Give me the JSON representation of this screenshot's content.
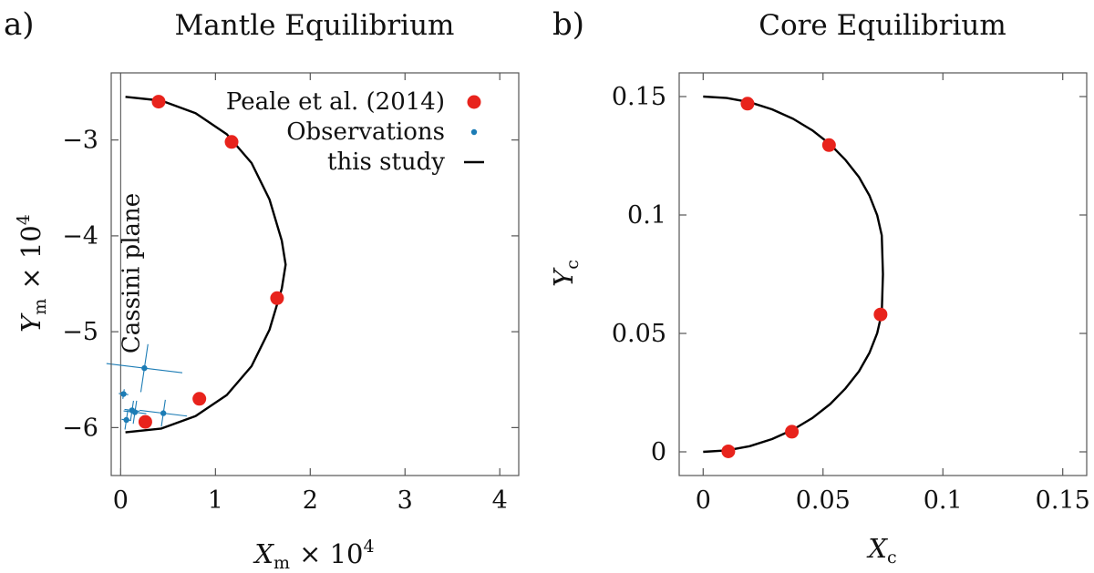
{
  "chart_data": [
    {
      "panel_label": "a)",
      "type": "scatter",
      "title": "Mantle Equilibrium",
      "xlabel": {
        "var": "X",
        "sub": "m",
        "factor": "× 10",
        "exp": "4"
      },
      "ylabel": {
        "var": "Y",
        "sub": "m",
        "factor": "× 10",
        "exp": "4"
      },
      "xlim": [
        -0.1,
        4.2
      ],
      "ylim": [
        -6.5,
        -2.3
      ],
      "xticks": [
        0,
        1,
        2,
        3,
        4
      ],
      "xtick_labels": [
        "0",
        "1",
        "2",
        "3",
        "4"
      ],
      "yticks": [
        -3,
        -4,
        -5,
        -6
      ],
      "ytick_labels": [
        "−3",
        "−4",
        "−5",
        "−6"
      ],
      "vertical_line": {
        "x": 0,
        "label": "Cassini plane"
      },
      "legend_position": "top-right",
      "legend": [
        {
          "label": "Peale et al. (2014)",
          "kind": "marker-large",
          "color": "#e8231c"
        },
        {
          "label": "Observations",
          "kind": "marker-small",
          "color": "#1c7cb5"
        },
        {
          "label": "this study",
          "kind": "line",
          "color": "#000000"
        }
      ],
      "series": [
        {
          "name": "this study",
          "type": "line",
          "color": "#000000",
          "x": [
            0.05,
            0.43,
            0.79,
            1.12,
            1.38,
            1.57,
            1.7,
            1.74,
            1.7,
            1.57,
            1.38,
            1.12,
            0.79,
            0.43,
            0.05
          ],
          "y": [
            -2.55,
            -2.59,
            -2.72,
            -2.94,
            -3.24,
            -3.62,
            -4.05,
            -4.3,
            -4.55,
            -4.98,
            -5.36,
            -5.66,
            -5.88,
            -6.01,
            -6.05
          ]
        },
        {
          "name": "Peale et al. (2014)",
          "type": "scatter",
          "color": "#e8231c",
          "x": [
            0.4,
            1.17,
            1.65,
            0.83,
            0.26
          ],
          "y": [
            -2.6,
            -3.02,
            -4.65,
            -5.7,
            -5.94
          ]
        },
        {
          "name": "Observations",
          "type": "scatter",
          "color": "#1c7cb5",
          "x": [
            0.25,
            0.03,
            0.15,
            0.45,
            0.12,
            0.06
          ],
          "y": [
            -5.38,
            -5.65,
            -5.84,
            -5.85,
            -5.82,
            -5.92
          ],
          "xerr": [
            0.4,
            0.05,
            0.12,
            0.25,
            0.08,
            0.05
          ],
          "yerr": [
            0.25,
            0.05,
            0.12,
            0.14,
            0.1,
            0.1
          ]
        }
      ]
    },
    {
      "panel_label": "b)",
      "type": "scatter",
      "title": "Core Equilibrium",
      "xlabel": {
        "var": "X",
        "sub": "c"
      },
      "ylabel": {
        "var": "Y",
        "sub": "c"
      },
      "xlim": [
        -0.01,
        0.16
      ],
      "ylim": [
        -0.01,
        0.16
      ],
      "xticks": [
        0,
        0.05,
        0.1,
        0.15
      ],
      "xtick_labels": [
        "0",
        "0.05",
        "0.1",
        "0.15"
      ],
      "yticks": [
        0,
        0.05,
        0.1,
        0.15
      ],
      "ytick_labels": [
        "0",
        "0.05",
        "0.1",
        "0.15"
      ],
      "series": [
        {
          "name": "this study",
          "type": "line",
          "color": "#000000",
          "x": [
            0.0,
            0.0098,
            0.0194,
            0.0287,
            0.0375,
            0.0456,
            0.053,
            0.0594,
            0.065,
            0.0694,
            0.0726,
            0.0745,
            0.075,
            0.0745,
            0.0726,
            0.0694,
            0.065,
            0.0594,
            0.053,
            0.0456,
            0.0375,
            0.0287,
            0.0194,
            0.0098,
            0.0
          ],
          "y": [
            0.15,
            0.1494,
            0.1476,
            0.1446,
            0.1406,
            0.1357,
            0.1298,
            0.1232,
            0.116,
            0.1081,
            0.0999,
            0.0914,
            0.075,
            0.0586,
            0.0501,
            0.0419,
            0.034,
            0.0268,
            0.0202,
            0.0143,
            0.0094,
            0.0054,
            0.0024,
            0.0006,
            0.0
          ]
        },
        {
          "name": "Peale et al. (2014)",
          "type": "scatter",
          "color": "#e8231c",
          "x": [
            0.0185,
            0.0525,
            0.074,
            0.037,
            0.0105
          ],
          "y": [
            0.147,
            0.1295,
            0.058,
            0.0085,
            0.0002
          ]
        }
      ]
    }
  ]
}
